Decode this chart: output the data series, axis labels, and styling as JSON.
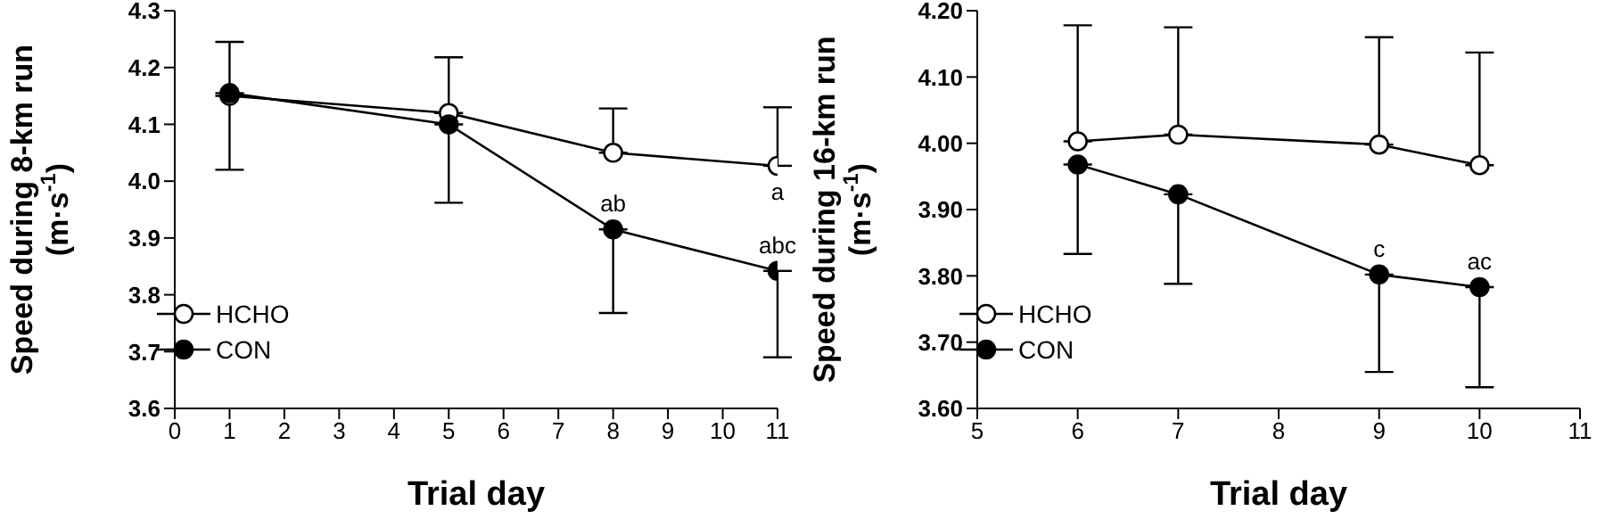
{
  "chart_data": [
    {
      "type": "line",
      "xlabel": "Trial day",
      "ylabel": "Speed during 8-km run\n(m·s$^{-1}$)",
      "x": [
        1,
        5,
        8,
        11
      ],
      "xlim": [
        0,
        11
      ],
      "xticks": [
        0,
        1,
        2,
        3,
        4,
        5,
        6,
        7,
        8,
        9,
        10,
        11
      ],
      "ylim": [
        3.6,
        4.3
      ],
      "yticks": [
        {
          "value": 3.6,
          "label": "3.6"
        },
        {
          "value": 3.7,
          "label": "3.7"
        },
        {
          "value": 3.8,
          "label": "3.8"
        },
        {
          "value": 3.9,
          "label": "3.9"
        },
        {
          "value": 4.0,
          "label": "4.0"
        },
        {
          "value": 4.1,
          "label": "4.1"
        },
        {
          "value": 4.2,
          "label": "4.2"
        },
        {
          "value": 4.3,
          "label": "4.3"
        }
      ],
      "marker": "circle",
      "legend": "bottom left",
      "grid": false,
      "series": [
        {
          "name": "HCHO",
          "color": "#ffffff",
          "values": [
            4.15,
            4.12,
            4.05,
            4.027
          ],
          "errors": [
            [
              4.15,
              4.245
            ],
            [
              4.12,
              4.218
            ],
            [
              4.05,
              4.128
            ],
            [
              4.027,
              4.13
            ]
          ]
        },
        {
          "name": "CON",
          "color": "#000000",
          "values": [
            4.155,
            4.1,
            3.915,
            3.842
          ],
          "errors": [
            [
              4.02,
              4.155
            ],
            [
              3.962,
              4.1
            ],
            [
              3.768,
              3.915
            ],
            [
              3.69,
              3.842
            ]
          ]
        }
      ],
      "annotations": [
        {
          "text": "a",
          "x": 11,
          "y": 4.027
        },
        {
          "text": "ab",
          "x": 8,
          "y": 3.915
        },
        {
          "text": "abc",
          "x": 11,
          "y": 3.842
        }
      ]
    },
    {
      "type": "line",
      "xlabel": "Trial day",
      "ylabel": "Speed during 16-km run\n(m·s$^{-1}$)",
      "x": [
        6,
        7,
        9,
        10
      ],
      "xlim": [
        5,
        11
      ],
      "xticks": [
        5,
        6,
        7,
        8,
        9,
        10,
        11
      ],
      "ylim": [
        3.6,
        4.2
      ],
      "yticks": [
        {
          "value": 3.6,
          "label": "3.60"
        },
        {
          "value": 3.7,
          "label": "3.70"
        },
        {
          "value": 3.8,
          "label": "3.80"
        },
        {
          "value": 3.9,
          "label": "3.90"
        },
        {
          "value": 4.0,
          "label": "4.00"
        },
        {
          "value": 4.1,
          "label": "4.10"
        },
        {
          "value": 4.2,
          "label": "4.20"
        }
      ],
      "marker": "circle",
      "legend": "bottom left",
      "grid": false,
      "series": [
        {
          "name": "HCHO",
          "color": "#ffffff",
          "values": [
            4.003,
            4.013,
            3.998,
            3.967
          ],
          "errors": [
            [
              4.003,
              4.178
            ],
            [
              4.013,
              4.175
            ],
            [
              3.998,
              4.16
            ],
            [
              3.967,
              4.137
            ]
          ]
        },
        {
          "name": "CON",
          "color": "#000000",
          "values": [
            3.968,
            3.923,
            3.802,
            3.783
          ],
          "errors": [
            [
              3.833,
              3.968
            ],
            [
              3.788,
              3.923
            ],
            [
              3.655,
              3.802
            ],
            [
              3.632,
              3.783
            ]
          ]
        }
      ],
      "annotations": [
        {
          "text": "c",
          "x": 9,
          "y": 3.802
        },
        {
          "text": "ac",
          "x": 10,
          "y": 3.783
        }
      ]
    }
  ]
}
